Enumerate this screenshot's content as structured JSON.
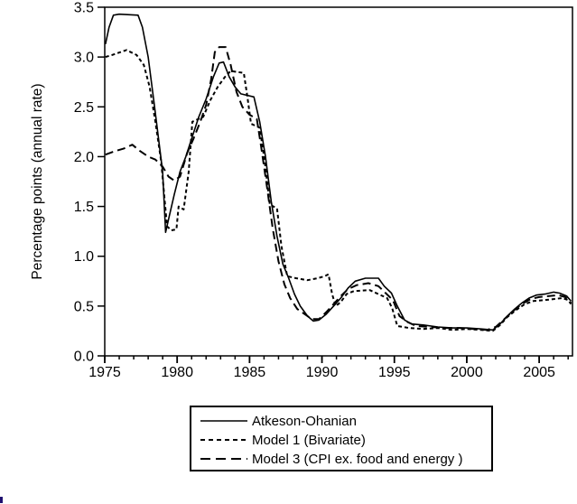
{
  "colors": {
    "background": "#ffffff",
    "line": "#000000",
    "frame": "#000000",
    "cursor_artifact": "#1f1070"
  },
  "chart_data": {
    "type": "line",
    "title": "",
    "xlabel": "",
    "ylabel": "Percentage points (annual rate)",
    "xlim": [
      1975,
      2007.3
    ],
    "ylim": [
      0.0,
      3.5
    ],
    "grid": false,
    "yticks": [
      {
        "v": 0.0,
        "label": "0.0"
      },
      {
        "v": 0.5,
        "label": "0.5"
      },
      {
        "v": 1.0,
        "label": "1.0"
      },
      {
        "v": 1.5,
        "label": "1.5"
      },
      {
        "v": 2.0,
        "label": "2.0"
      },
      {
        "v": 2.5,
        "label": "2.5"
      },
      {
        "v": 3.0,
        "label": "3.0"
      },
      {
        "v": 3.5,
        "label": "3.5"
      }
    ],
    "xticks_major": [
      {
        "v": 1975,
        "label": "1975"
      },
      {
        "v": 1980,
        "label": "1980"
      },
      {
        "v": 1985,
        "label": "1985"
      },
      {
        "v": 1990,
        "label": "1990"
      },
      {
        "v": 1995,
        "label": "1995"
      },
      {
        "v": 2000,
        "label": "2000"
      },
      {
        "v": 2005,
        "label": "2005"
      }
    ],
    "xticks_minor_start": 1975,
    "xticks_minor_end": 2007,
    "legend": {
      "position": "bottom-center",
      "entries": [
        {
          "label": "Atkeson-Ohanian",
          "dash": "solid"
        },
        {
          "label": "Model 1 (Bivariate)",
          "dash": "short-dash"
        },
        {
          "label": "Model 3 (CPI ex. food and energy )",
          "dash": "long-dash"
        }
      ]
    },
    "series": [
      {
        "name": "Atkeson-Ohanian",
        "dash": "solid",
        "points": [
          [
            1975.05,
            3.13
          ],
          [
            1975.3,
            3.3
          ],
          [
            1975.6,
            3.42
          ],
          [
            1976.0,
            3.43
          ],
          [
            1977.3,
            3.42
          ],
          [
            1977.6,
            3.3
          ],
          [
            1978.0,
            3.0
          ],
          [
            1978.4,
            2.55
          ],
          [
            1978.7,
            2.2
          ],
          [
            1979.0,
            1.85
          ],
          [
            1979.2,
            1.24
          ],
          [
            1979.45,
            1.4
          ],
          [
            1979.8,
            1.62
          ],
          [
            1980.2,
            1.85
          ],
          [
            1980.6,
            2.0
          ],
          [
            1981.0,
            2.18
          ],
          [
            1981.5,
            2.4
          ],
          [
            1982.0,
            2.58
          ],
          [
            1982.5,
            2.8
          ],
          [
            1982.9,
            2.94
          ],
          [
            1983.2,
            2.95
          ],
          [
            1983.6,
            2.8
          ],
          [
            1984.0,
            2.7
          ],
          [
            1984.4,
            2.63
          ],
          [
            1985.3,
            2.6
          ],
          [
            1985.7,
            2.35
          ],
          [
            1986.1,
            2.0
          ],
          [
            1986.5,
            1.55
          ],
          [
            1986.9,
            1.2
          ],
          [
            1987.3,
            0.92
          ],
          [
            1987.7,
            0.78
          ],
          [
            1988.1,
            0.62
          ],
          [
            1988.5,
            0.5
          ],
          [
            1989.0,
            0.4
          ],
          [
            1989.4,
            0.35
          ],
          [
            1989.8,
            0.36
          ],
          [
            1990.3,
            0.42
          ],
          [
            1990.8,
            0.5
          ],
          [
            1991.3,
            0.58
          ],
          [
            1991.8,
            0.68
          ],
          [
            1992.3,
            0.75
          ],
          [
            1993.0,
            0.78
          ],
          [
            1993.9,
            0.78
          ],
          [
            1994.3,
            0.7
          ],
          [
            1994.8,
            0.63
          ],
          [
            1995.2,
            0.5
          ],
          [
            1995.7,
            0.36
          ],
          [
            1996.2,
            0.32
          ],
          [
            1997.0,
            0.31
          ],
          [
            1998.0,
            0.29
          ],
          [
            1999.0,
            0.28
          ],
          [
            2000.0,
            0.28
          ],
          [
            2001.0,
            0.27
          ],
          [
            2001.8,
            0.26
          ],
          [
            2002.3,
            0.32
          ],
          [
            2002.8,
            0.4
          ],
          [
            2003.3,
            0.47
          ],
          [
            2003.8,
            0.53
          ],
          [
            2004.3,
            0.58
          ],
          [
            2004.8,
            0.61
          ],
          [
            2005.4,
            0.62
          ],
          [
            2006.0,
            0.64
          ],
          [
            2006.4,
            0.63
          ],
          [
            2006.9,
            0.6
          ],
          [
            2007.2,
            0.55
          ]
        ]
      },
      {
        "name": "Model 1 (Bivariate)",
        "dash": "short-dash",
        "points": [
          [
            1975.05,
            3.0
          ],
          [
            1975.5,
            3.02
          ],
          [
            1976.5,
            3.07
          ],
          [
            1977.2,
            3.02
          ],
          [
            1977.7,
            2.92
          ],
          [
            1978.1,
            2.7
          ],
          [
            1978.5,
            2.35
          ],
          [
            1978.9,
            1.95
          ],
          [
            1979.3,
            1.3
          ],
          [
            1979.6,
            1.26
          ],
          [
            1979.95,
            1.27
          ],
          [
            1980.1,
            1.5
          ],
          [
            1980.45,
            1.47
          ],
          [
            1980.8,
            1.85
          ],
          [
            1981.05,
            2.35
          ],
          [
            1981.8,
            2.4
          ],
          [
            1982.3,
            2.57
          ],
          [
            1982.8,
            2.7
          ],
          [
            1983.3,
            2.8
          ],
          [
            1983.7,
            2.86
          ],
          [
            1984.6,
            2.84
          ],
          [
            1984.85,
            2.6
          ],
          [
            1985.1,
            2.33
          ],
          [
            1985.7,
            2.29
          ],
          [
            1986.05,
            1.95
          ],
          [
            1986.4,
            1.52
          ],
          [
            1986.9,
            1.48
          ],
          [
            1987.2,
            1.1
          ],
          [
            1987.6,
            0.8
          ],
          [
            1988.2,
            0.78
          ],
          [
            1989.0,
            0.76
          ],
          [
            1989.7,
            0.78
          ],
          [
            1990.2,
            0.8
          ],
          [
            1990.45,
            0.82
          ],
          [
            1990.7,
            0.62
          ],
          [
            1990.95,
            0.5
          ],
          [
            1991.3,
            0.54
          ],
          [
            1991.7,
            0.62
          ],
          [
            1992.2,
            0.65
          ],
          [
            1993.3,
            0.66
          ],
          [
            1993.9,
            0.62
          ],
          [
            1994.5,
            0.58
          ],
          [
            1994.85,
            0.48
          ],
          [
            1995.2,
            0.3
          ],
          [
            1996.0,
            0.28
          ],
          [
            1997.0,
            0.27
          ],
          [
            1998.0,
            0.28
          ],
          [
            1999.0,
            0.26
          ],
          [
            2000.0,
            0.27
          ],
          [
            2001.0,
            0.26
          ],
          [
            2001.8,
            0.25
          ],
          [
            2002.3,
            0.31
          ],
          [
            2002.8,
            0.39
          ],
          [
            2003.4,
            0.46
          ],
          [
            2004.0,
            0.52
          ],
          [
            2004.6,
            0.55
          ],
          [
            2005.4,
            0.56
          ],
          [
            2006.0,
            0.57
          ],
          [
            2006.6,
            0.58
          ],
          [
            2007.0,
            0.56
          ],
          [
            2007.2,
            0.52
          ]
        ]
      },
      {
        "name": "Model 3 (CPI ex. food and energy )",
        "dash": "long-dash",
        "points": [
          [
            1975.05,
            2.02
          ],
          [
            1975.6,
            2.05
          ],
          [
            1976.3,
            2.08
          ],
          [
            1976.9,
            2.12
          ],
          [
            1977.4,
            2.06
          ],
          [
            1978.0,
            2.0
          ],
          [
            1978.5,
            1.97
          ],
          [
            1979.0,
            1.9
          ],
          [
            1979.4,
            1.8
          ],
          [
            1979.8,
            1.76
          ],
          [
            1980.2,
            1.8
          ],
          [
            1980.7,
            2.04
          ],
          [
            1981.1,
            2.17
          ],
          [
            1981.6,
            2.35
          ],
          [
            1982.0,
            2.52
          ],
          [
            1982.35,
            2.78
          ],
          [
            1982.6,
            3.05
          ],
          [
            1982.9,
            3.1
          ],
          [
            1983.35,
            3.1
          ],
          [
            1983.7,
            2.92
          ],
          [
            1984.1,
            2.65
          ],
          [
            1984.5,
            2.5
          ],
          [
            1985.0,
            2.42
          ],
          [
            1985.5,
            2.38
          ],
          [
            1985.8,
            2.1
          ],
          [
            1986.2,
            1.7
          ],
          [
            1986.6,
            1.28
          ],
          [
            1987.0,
            0.95
          ],
          [
            1987.4,
            0.72
          ],
          [
            1987.8,
            0.58
          ],
          [
            1988.3,
            0.47
          ],
          [
            1988.8,
            0.42
          ],
          [
            1989.3,
            0.37
          ],
          [
            1989.8,
            0.37
          ],
          [
            1990.3,
            0.44
          ],
          [
            1990.8,
            0.52
          ],
          [
            1991.3,
            0.6
          ],
          [
            1991.8,
            0.67
          ],
          [
            1992.4,
            0.71
          ],
          [
            1993.2,
            0.73
          ],
          [
            1993.9,
            0.7
          ],
          [
            1994.4,
            0.63
          ],
          [
            1994.9,
            0.56
          ],
          [
            1995.35,
            0.4
          ],
          [
            1995.9,
            0.34
          ],
          [
            1996.5,
            0.3
          ],
          [
            1997.5,
            0.29
          ],
          [
            1998.5,
            0.28
          ],
          [
            1999.5,
            0.28
          ],
          [
            2000.5,
            0.27
          ],
          [
            2001.4,
            0.26
          ],
          [
            2002.0,
            0.29
          ],
          [
            2002.6,
            0.37
          ],
          [
            2003.2,
            0.45
          ],
          [
            2003.8,
            0.52
          ],
          [
            2004.4,
            0.57
          ],
          [
            2005.0,
            0.59
          ],
          [
            2005.7,
            0.6
          ],
          [
            2006.3,
            0.61
          ],
          [
            2006.8,
            0.59
          ],
          [
            2007.2,
            0.53
          ]
        ]
      }
    ]
  }
}
